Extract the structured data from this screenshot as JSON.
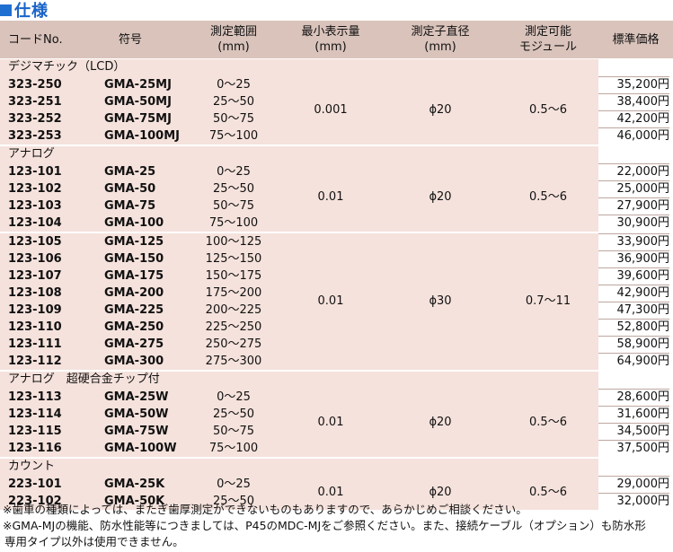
{
  "section_title": "仕様",
  "headers": {
    "code": "コードNo.",
    "model": "符号",
    "range": [
      "測定範囲",
      "(mm)"
    ],
    "resolution": [
      "最小表示量",
      "(mm)"
    ],
    "anvil": [
      "測定子直径",
      "(mm)"
    ],
    "module": [
      "測定可能",
      "モジュール"
    ],
    "price": "標準価格"
  },
  "groups": [
    {
      "title": "デジマチック（LCD）",
      "resolution": "0.001",
      "anvil": "ϕ20",
      "module": "0.5～6",
      "rows": [
        {
          "code": "323-250",
          "model": "GMA-25MJ",
          "range": "0～25",
          "price": "35,200円"
        },
        {
          "code": "323-251",
          "model": "GMA-50MJ",
          "range": "25～50",
          "price": "38,400円"
        },
        {
          "code": "323-252",
          "model": "GMA-75MJ",
          "range": "50～75",
          "price": "42,200円"
        },
        {
          "code": "323-253",
          "model": "GMA-100MJ",
          "range": "75～100",
          "price": "46,000円"
        }
      ]
    },
    {
      "title": "アナログ",
      "resolution": "0.01",
      "anvil": "ϕ20",
      "module": "0.5～6",
      "rows": [
        {
          "code": "123-101",
          "model": "GMA-25",
          "range": "0～25",
          "price": "22,000円"
        },
        {
          "code": "123-102",
          "model": "GMA-50",
          "range": "25～50",
          "price": "25,000円"
        },
        {
          "code": "123-103",
          "model": "GMA-75",
          "range": "50～75",
          "price": "27,900円"
        },
        {
          "code": "123-104",
          "model": "GMA-100",
          "range": "75～100",
          "price": "30,900円"
        }
      ]
    },
    {
      "title": "",
      "resolution": "0.01",
      "anvil": "ϕ30",
      "module": "0.7～11",
      "rows": [
        {
          "code": "123-105",
          "model": "GMA-125",
          "range": "100～125",
          "price": "33,900円"
        },
        {
          "code": "123-106",
          "model": "GMA-150",
          "range": "125～150",
          "price": "36,900円"
        },
        {
          "code": "123-107",
          "model": "GMA-175",
          "range": "150～175",
          "price": "39,600円"
        },
        {
          "code": "123-108",
          "model": "GMA-200",
          "range": "175～200",
          "price": "42,900円"
        },
        {
          "code": "123-109",
          "model": "GMA-225",
          "range": "200～225",
          "price": "47,300円"
        },
        {
          "code": "123-110",
          "model": "GMA-250",
          "range": "225～250",
          "price": "52,800円"
        },
        {
          "code": "123-111",
          "model": "GMA-275",
          "range": "250～275",
          "price": "58,900円"
        },
        {
          "code": "123-112",
          "model": "GMA-300",
          "range": "275～300",
          "price": "64,900円"
        }
      ]
    },
    {
      "title": "アナログ　超硬合金チップ付",
      "resolution": "0.01",
      "anvil": "ϕ20",
      "module": "0.5～6",
      "rows": [
        {
          "code": "123-113",
          "model": "GMA-25W",
          "range": "0～25",
          "price": "28,600円"
        },
        {
          "code": "123-114",
          "model": "GMA-50W",
          "range": "25～50",
          "price": "31,600円"
        },
        {
          "code": "123-115",
          "model": "GMA-75W",
          "range": "50～75",
          "price": "34,500円"
        },
        {
          "code": "123-116",
          "model": "GMA-100W",
          "range": "75～100",
          "price": "37,500円"
        }
      ]
    },
    {
      "title": "カウント",
      "resolution": "0.01",
      "anvil": "ϕ20",
      "module": "0.5～6",
      "rows": [
        {
          "code": "223-101",
          "model": "GMA-25K",
          "range": "0～25",
          "price": "29,000円"
        },
        {
          "code": "223-102",
          "model": "GMA-50K",
          "range": "25～50",
          "price": "32,000円"
        }
      ]
    }
  ],
  "notes": [
    "※歯車の種類によっては、またぎ歯厚測定ができないものもありますので、あらかじめご相談ください。",
    "※GMA-MJの機能、防水性能等につきましては、P45のMDC-MJをご参照ください。また、接続ケーブル（オプション）も防水形",
    "専用タイプ以外は使用できません。"
  ],
  "colors": {
    "title_blue": "#1a63c8",
    "header_bg": "#d9c3bb",
    "row_bg": "#f5e2dc"
  }
}
